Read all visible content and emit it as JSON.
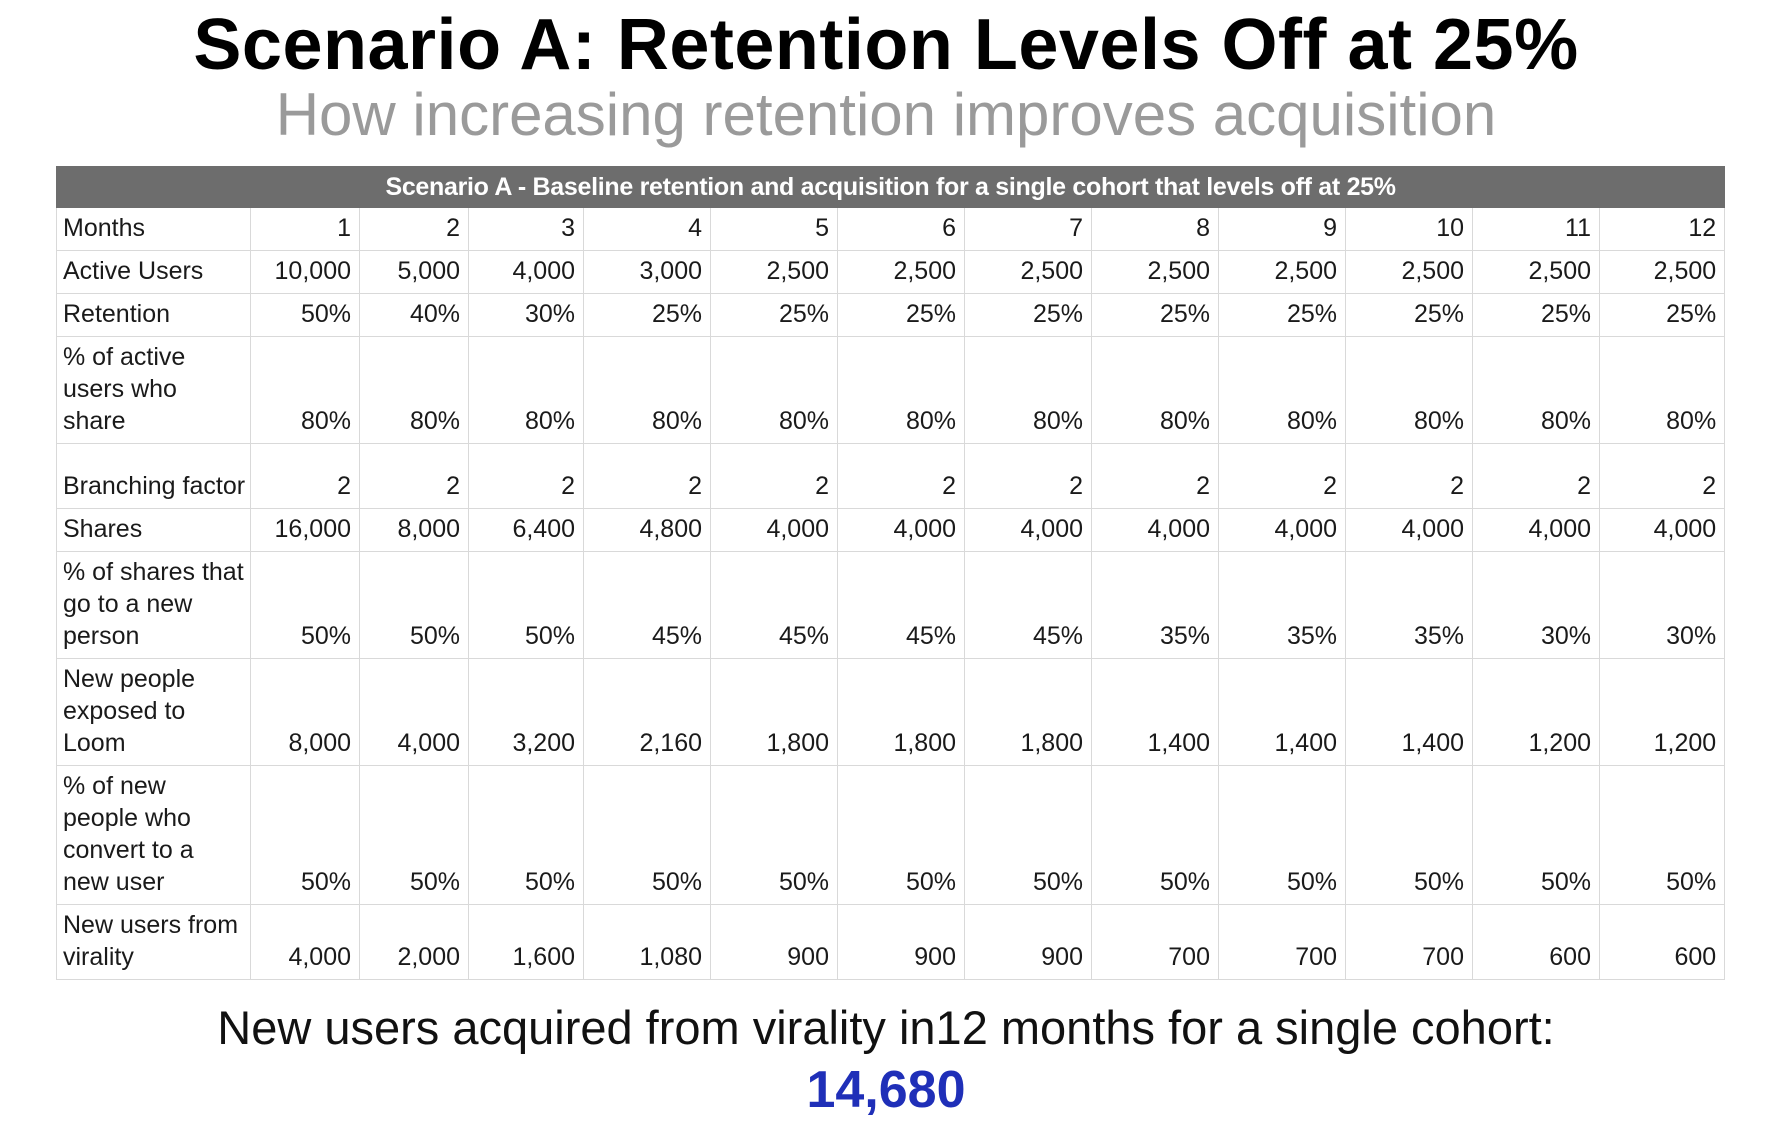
{
  "title": "Scenario A: Retention Levels Off at 25%",
  "subtitle": "How increasing retention improves acquisition",
  "table": {
    "banner": "Scenario A - Baseline retention and acquisition for a single cohort that levels off at 25%",
    "rows": [
      {
        "label": "Months",
        "values": [
          "1",
          "2",
          "3",
          "4",
          "5",
          "6",
          "7",
          "8",
          "9",
          "10",
          "11",
          "12"
        ]
      },
      {
        "label": "Active Users",
        "values": [
          "10,000",
          "5,000",
          "4,000",
          "3,000",
          "2,500",
          "2,500",
          "2,500",
          "2,500",
          "2,500",
          "2,500",
          "2,500",
          "2,500"
        ]
      },
      {
        "label": "Retention",
        "values": [
          "50%",
          "40%",
          "30%",
          "25%",
          "25%",
          "25%",
          "25%",
          "25%",
          "25%",
          "25%",
          "25%",
          "25%"
        ]
      },
      {
        "label": "% of active users who share",
        "values": [
          "80%",
          "80%",
          "80%",
          "80%",
          "80%",
          "80%",
          "80%",
          "80%",
          "80%",
          "80%",
          "80%",
          "80%"
        ]
      },
      {
        "label": "Branching factor",
        "values": [
          "2",
          "2",
          "2",
          "2",
          "2",
          "2",
          "2",
          "2",
          "2",
          "2",
          "2",
          "2"
        ]
      },
      {
        "label": "Shares",
        "values": [
          "16,000",
          "8,000",
          "6,400",
          "4,800",
          "4,000",
          "4,000",
          "4,000",
          "4,000",
          "4,000",
          "4,000",
          "4,000",
          "4,000"
        ]
      },
      {
        "label": "% of shares that go to a new person",
        "values": [
          "50%",
          "50%",
          "50%",
          "45%",
          "45%",
          "45%",
          "45%",
          "35%",
          "35%",
          "35%",
          "30%",
          "30%"
        ]
      },
      {
        "label": "New people exposed to Loom",
        "values": [
          "8,000",
          "4,000",
          "3,200",
          "2,160",
          "1,800",
          "1,800",
          "1,800",
          "1,400",
          "1,400",
          "1,400",
          "1,200",
          "1,200"
        ]
      },
      {
        "label": "% of new people who convert to a new user",
        "values": [
          "50%",
          "50%",
          "50%",
          "50%",
          "50%",
          "50%",
          "50%",
          "50%",
          "50%",
          "50%",
          "50%",
          "50%"
        ]
      },
      {
        "label": "New users from virality",
        "values": [
          "4,000",
          "2,000",
          "1,600",
          "1,080",
          "900",
          "900",
          "900",
          "700",
          "700",
          "700",
          "600",
          "600"
        ]
      }
    ]
  },
  "summary": {
    "text": "New users acquired from virality in12 months for a single cohort:",
    "total": "14,680"
  },
  "colors": {
    "banner_bg": "#6d6d6d",
    "subtitle": "#9a9a9a",
    "total": "#1f2fb8"
  }
}
